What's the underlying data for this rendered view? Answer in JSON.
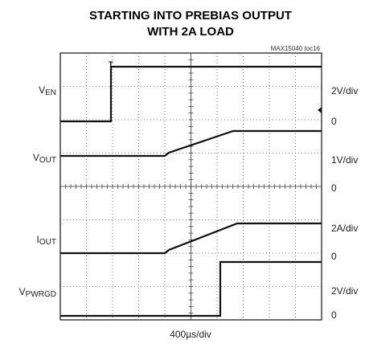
{
  "header": {
    "title_lines": [
      "STARTING INTO PREBIAS OUTPUT",
      "WITH 2A LOAD"
    ],
    "tag": "MAX15040 toc16"
  },
  "channels": [
    {
      "name": {
        "main": "V",
        "sub": "EN"
      },
      "scale": "2V/div",
      "zero": "0"
    },
    {
      "name": {
        "main": "V",
        "sub": "OUT"
      },
      "scale": "1V/div",
      "zero": "0"
    },
    {
      "name": {
        "main": "I",
        "sub": "OUT"
      },
      "scale": "2A/div",
      "zero": "0"
    },
    {
      "name": {
        "main": "V",
        "sub": "PWRGD"
      },
      "scale": "2V/div",
      "zero": "0"
    }
  ],
  "timebase": "400µs/div",
  "trigger": "T"
}
